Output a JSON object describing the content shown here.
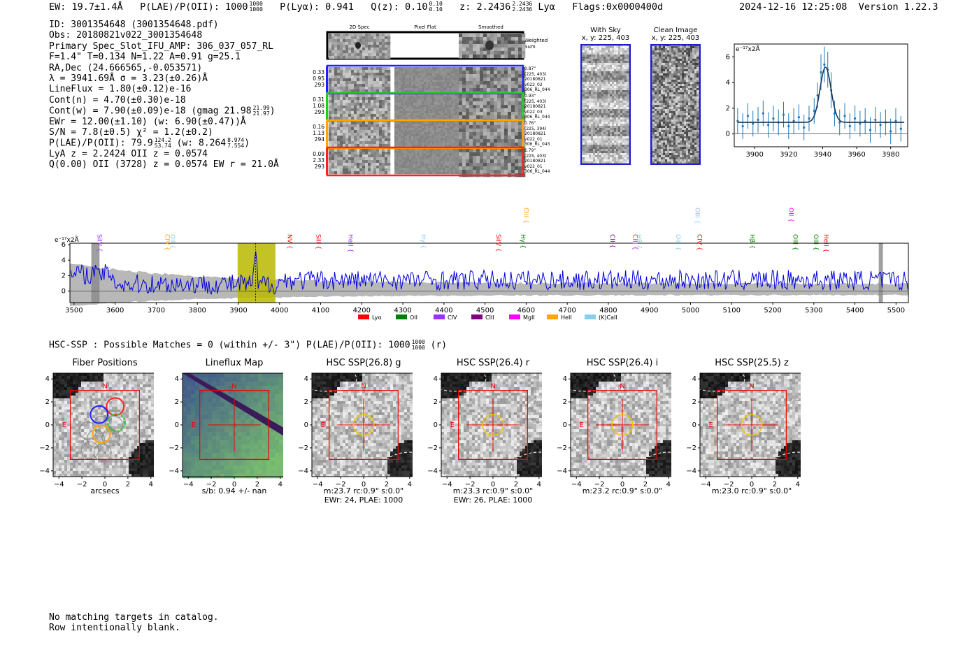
{
  "header": {
    "ew": "EW: 19.7±1.4Å",
    "plae_label": "P(LAE)/P(OII): 1000",
    "plae_hi": "1000",
    "plae_lo": "1000",
    "plya": "P(Lyα): 0.941",
    "qz_label": "Q(z): 0.10",
    "qz_hi": "0.10",
    "qz_lo": "0.10",
    "z_label": "z: 2.2436",
    "z_hi": "2.2436",
    "z_lo": "2.2436",
    "line": "Lyα",
    "flags": "Flags:0x0000400d",
    "datetime": "2024-12-16 12:25:08",
    "version": "Version 1.22.3"
  },
  "info": {
    "id": "ID: 3001354648 (3001354648.pdf)",
    "obs": "Obs: 20180821v022_3001354648",
    "primary": "Primary Spec_Slot_IFU_AMP: 306_037_057_RL",
    "fwhm": "F=1.4\"  T=0.134  N=1.22  A=0.91  g=25.1",
    "radec": "RA,Dec (24.666565,-0.053571)",
    "lambda": "λ = 3941.69Å  σ = 3.23(±0.26)Å",
    "lineflux": "LineFlux = 1.80(±0.12)e-16",
    "contn": "Cont(n) = 4.70(±0.30)e-18",
    "contw": "Cont(w) = 7.90(±0.09)e-18 (gmag 21.98",
    "contw_hi": "21.99",
    "contw_lo": "21.97",
    "contw_end": ")",
    "ewr": "EWr = 12.00(±1.10) (w: 6.90(±0.47))Å",
    "sn": "S/N = 7.8(±0.5)  χ² = 1.2(±0.2)",
    "plae": "P(LAE)/P(OII): 79.9",
    "plae_hi": "124.2",
    "plae_lo": "53.74",
    "plae_w": "(w: 8.264",
    "plae_w_hi": "8.974",
    "plae_w_lo": "7.554",
    "plae_end": ")",
    "lya": "LyA z = 2.2424  OII z = 0.0574",
    "q": "Q(0.00) OII (3728) z = 0.0574  EW r = 21.0Å"
  },
  "cutouts": {
    "col_2d": "2D Spec",
    "col_flat": "Pixel Flat",
    "col_smooth": "Smoothed",
    "weighted": "Weighted Sum",
    "rows": [
      {
        "n1": "0.33",
        "n2": "0.95",
        "n3": "293",
        "d": "0.87\"",
        "xy": "(225, 403)",
        "date": "20180821",
        "v": "v022_02",
        "amp": "306_RL_044",
        "color": "#1f1fff"
      },
      {
        "n1": "0.31",
        "n2": "1.08",
        "n3": "293",
        "d": "0.93\"",
        "xy": "(225, 403)",
        "date": "20180821",
        "v": "v022_03",
        "amp": "306_RL_044",
        "color": "#22cc22"
      },
      {
        "n1": "0.16",
        "n2": "1.13",
        "n3": "294",
        "d": "0.76\"",
        "xy": "(225, 394)",
        "date": "20180821",
        "v": "v022_01",
        "amp": "306_RL_043",
        "color": "#ffa500"
      },
      {
        "n1": "0.09",
        "n2": "2.33",
        "n3": "293",
        "d": "1.79\"",
        "xy": "(225, 403)",
        "date": "20180821",
        "v": "v022_01",
        "amp": "306_RL_044",
        "color": "#ff2020"
      }
    ],
    "with_sky": "With Sky",
    "with_sky_xy": "x, y: 225, 403",
    "clean": "Clean Image",
    "clean_xy": "x, y: 225, 403"
  },
  "zoom_chart": {
    "type": "line",
    "unit": "e⁻¹⁷x2Å",
    "xlim": [
      3888,
      3990
    ],
    "ylim": [
      -1,
      7
    ],
    "xticks": [
      3900,
      3920,
      3940,
      3960,
      3980
    ],
    "yticks": [
      0,
      2,
      4,
      6
    ],
    "fit_center": 3941.69,
    "fit_sigma": 3.23,
    "fit_amp": 4.3,
    "fit_base": 0.9,
    "points": [
      [
        3890,
        1.0
      ],
      [
        3893,
        0.6
      ],
      [
        3896,
        1.4
      ],
      [
        3899,
        0.8
      ],
      [
        3902,
        1.1
      ],
      [
        3905,
        1.6
      ],
      [
        3908,
        0.7
      ],
      [
        3911,
        1.2
      ],
      [
        3914,
        0.9
      ],
      [
        3917,
        1.5
      ],
      [
        3920,
        0.6
      ],
      [
        3923,
        1.0
      ],
      [
        3926,
        1.3
      ],
      [
        3929,
        0.5
      ],
      [
        3932,
        1.2
      ],
      [
        3935,
        1.8
      ],
      [
        3937,
        3.0
      ],
      [
        3939,
        4.8
      ],
      [
        3941,
        5.4
      ],
      [
        3943,
        5.0
      ],
      [
        3945,
        3.4
      ],
      [
        3947,
        1.6
      ],
      [
        3950,
        0.9
      ],
      [
        3953,
        1.4
      ],
      [
        3956,
        0.6
      ],
      [
        3959,
        1.2
      ],
      [
        3962,
        0.8
      ],
      [
        3965,
        1.0
      ],
      [
        3968,
        0.3
      ],
      [
        3971,
        1.1
      ],
      [
        3974,
        0.7
      ],
      [
        3977,
        0.9
      ],
      [
        3980,
        0.2
      ],
      [
        3983,
        1.0
      ],
      [
        3986,
        0.4
      ]
    ]
  },
  "main_chart": {
    "type": "line",
    "unit": "e⁻¹⁷x2Å",
    "xlim": [
      3490,
      5530
    ],
    "ylim": [
      -1.5,
      6.2
    ],
    "xticks": [
      3500,
      3600,
      3700,
      3800,
      3900,
      4000,
      4100,
      4200,
      4300,
      4400,
      4500,
      4600,
      4700,
      4800,
      4900,
      5000,
      5100,
      5200,
      5300,
      5400,
      5500
    ],
    "yticks": [
      0,
      2,
      4,
      6
    ],
    "highlight": [
      3898,
      3990
    ],
    "peak": 3941.7,
    "lines": [
      {
        "name": "SiIV",
        "x": 3552,
        "tier": 0,
        "color": "#9b30ff"
      },
      {
        "name": "CIV",
        "x": 3717,
        "tier": 0,
        "color": "#ffa500"
      },
      {
        "name": "OII",
        "x": 3730,
        "tier": 0,
        "color": "#87ceeb"
      },
      {
        "name": "NV",
        "x": 4015,
        "tier": 0,
        "color": "#ff0000"
      },
      {
        "name": "SiII",
        "x": 4085,
        "tier": 0,
        "color": "#ff0000"
      },
      {
        "name": "HeII",
        "x": 4163,
        "tier": 0,
        "color": "#9b30ff"
      },
      {
        "name": "Hγ",
        "x": 4340,
        "tier": 0,
        "color": "#87ceeb"
      },
      {
        "name": "SiIV",
        "x": 4523,
        "tier": 0,
        "color": "#ff0000"
      },
      {
        "name": "CIII",
        "x": 4590,
        "tier": 2,
        "color": "#ffa500"
      },
      {
        "name": "Hγ",
        "x": 4582,
        "tier": 0,
        "color": "#008000"
      },
      {
        "name": "CII",
        "x": 4800,
        "tier": 0,
        "color": "#800080"
      },
      {
        "name": "CIII",
        "x": 4855,
        "tier": 0,
        "color": "#9b30ff"
      },
      {
        "name": "Hβ",
        "x": 4865,
        "tier": 0,
        "color": "#87ceeb"
      },
      {
        "name": "OIII",
        "x": 4960,
        "tier": 0,
        "color": "#87ceeb"
      },
      {
        "name": "OIII",
        "x": 5007,
        "tier": 2,
        "color": "#87ceeb"
      },
      {
        "name": "CIV",
        "x": 5012,
        "tier": 0,
        "color": "#ff0000"
      },
      {
        "name": "Hβ",
        "x": 5140,
        "tier": 0,
        "color": "#008000"
      },
      {
        "name": "OII",
        "x": 5235,
        "tier": 2,
        "color": "#ff00ff"
      },
      {
        "name": "OIII",
        "x": 5245,
        "tier": 0,
        "color": "#008000"
      },
      {
        "name": "OIII",
        "x": 5295,
        "tier": 0,
        "color": "#008000"
      },
      {
        "name": "HeII",
        "x": 5320,
        "tier": 0,
        "color": "#ff0000"
      }
    ],
    "legend": [
      {
        "name": "Lyα",
        "color": "#ff0000"
      },
      {
        "name": "OII",
        "color": "#008000"
      },
      {
        "name": "CIV",
        "color": "#9b30ff"
      },
      {
        "name": "CIII",
        "color": "#800080"
      },
      {
        "name": "MgII",
        "color": "#ff00ff"
      },
      {
        "name": "HeII",
        "color": "#ffa500"
      },
      {
        "name": "(K)CaII",
        "color": "#87ceeb"
      }
    ]
  },
  "hsc": {
    "summary": "HSC-SSP : Possible Matches = 0 (within +/- 3\")  P(LAE)/P(OII): 1000",
    "summary_hi": "1000",
    "summary_lo": "1000",
    "summary_end": "(r)",
    "xticks": [
      "−4",
      "−2",
      "0",
      "2",
      "4"
    ],
    "yticks": [
      "4",
      "2",
      "0",
      "−2",
      "−4"
    ],
    "north": "N",
    "east": "E",
    "panels": [
      {
        "title": "Fiber Positions",
        "cap1": "arcsecs",
        "cap2": "",
        "kind": "fiber"
      },
      {
        "title": "Lineflux Map",
        "cap1": "s/b: 0.94 +/- nan",
        "cap2": "",
        "kind": "flux"
      },
      {
        "title": "HSC SSP(26.8) g",
        "cap1": "m:23.7 rc:0.9\"  s:0.0\"",
        "cap2": "EWr: 24, PLAE: 1000",
        "kind": "img"
      },
      {
        "title": "HSC SSP(26.4) r",
        "cap1": "m:23.3 rc:0.9\"  s:0.0\"",
        "cap2": "EWr: 26, PLAE: 1000",
        "kind": "img"
      },
      {
        "title": "HSC SSP(26.4) i",
        "cap1": "m:23.2 rc:0.9\"  s:0.0\"",
        "cap2": "",
        "kind": "img"
      },
      {
        "title": "HSC SSP(25.5) z",
        "cap1": "m:23.0 rc:0.9\"  s:0.0\"",
        "cap2": "",
        "kind": "img"
      }
    ]
  },
  "footer": {
    "line1": "No matching targets in catalog.",
    "line2": "Row intentionally blank."
  }
}
